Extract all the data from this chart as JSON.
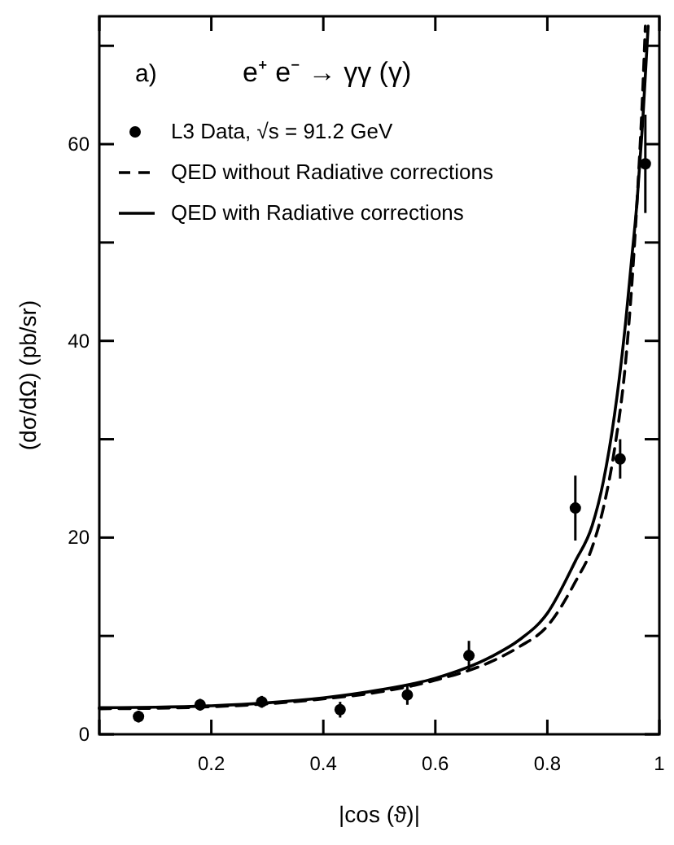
{
  "chart_data": {
    "type": "line",
    "title": "e⁺ e⁻ → γγ (γ)",
    "annotations": [
      "a)"
    ],
    "xlabel": "|cos (ϑ)|",
    "ylabel": "(dσ/dΩ) (pb/sr)",
    "xlim": [
      0,
      1
    ],
    "ylim": [
      0,
      73
    ],
    "xticks": [
      {
        "value": 0,
        "label": null
      },
      0.2,
      0.4,
      0.6,
      0.8,
      1
    ],
    "yticks": [
      0,
      {
        "value": 10,
        "label": null
      },
      20,
      {
        "value": 30,
        "label": null
      },
      40,
      {
        "value": 50,
        "label": null
      },
      60,
      {
        "value": 70,
        "label": null
      }
    ],
    "grid": false,
    "legend": "top left",
    "series": [
      {
        "type": "scatter",
        "name": "L3 Data, √s = 91.2 GeV",
        "color": "#000000",
        "marker": "circle",
        "x": [
          0.07,
          0.18,
          0.29,
          0.43,
          0.55,
          0.66,
          0.85,
          0.93,
          0.975
        ],
        "values": [
          1.8,
          3,
          3.3,
          2.5,
          4,
          8,
          23,
          28,
          58
        ],
        "errors": [
          0.6,
          0.6,
          0.6,
          0.8,
          1,
          1.5,
          3.3,
          2,
          5
        ]
      },
      {
        "name": "QED without Radiative corrections",
        "color": "#000000",
        "line_style": "dashed",
        "marker": "none",
        "x": [
          0,
          0.1,
          0.2,
          0.3,
          0.4,
          0.5,
          0.6,
          0.7,
          0.75,
          0.8,
          0.85,
          0.88,
          0.9,
          0.92,
          0.94,
          0.95,
          0.96,
          0.97,
          0.975
        ],
        "values": [
          2.6,
          2.65,
          2.8,
          3.1,
          3.6,
          4.3,
          5.5,
          7.4,
          8.9,
          11,
          15.5,
          19,
          23,
          29,
          38,
          45,
          54,
          65,
          72
        ]
      },
      {
        "name": "QED with Radiative corrections",
        "color": "#000000",
        "line_style": "solid",
        "marker": "none",
        "x": [
          0,
          0.1,
          0.2,
          0.3,
          0.4,
          0.5,
          0.6,
          0.7,
          0.75,
          0.8,
          0.85,
          0.88,
          0.9,
          0.92,
          0.94,
          0.95,
          0.96,
          0.97,
          0.98
        ],
        "values": [
          2.7,
          2.75,
          2.9,
          3.2,
          3.7,
          4.5,
          5.7,
          7.9,
          9.6,
          12.3,
          17.6,
          21.2,
          25.7,
          32.5,
          42,
          48,
          54,
          62,
          72
        ]
      }
    ]
  }
}
